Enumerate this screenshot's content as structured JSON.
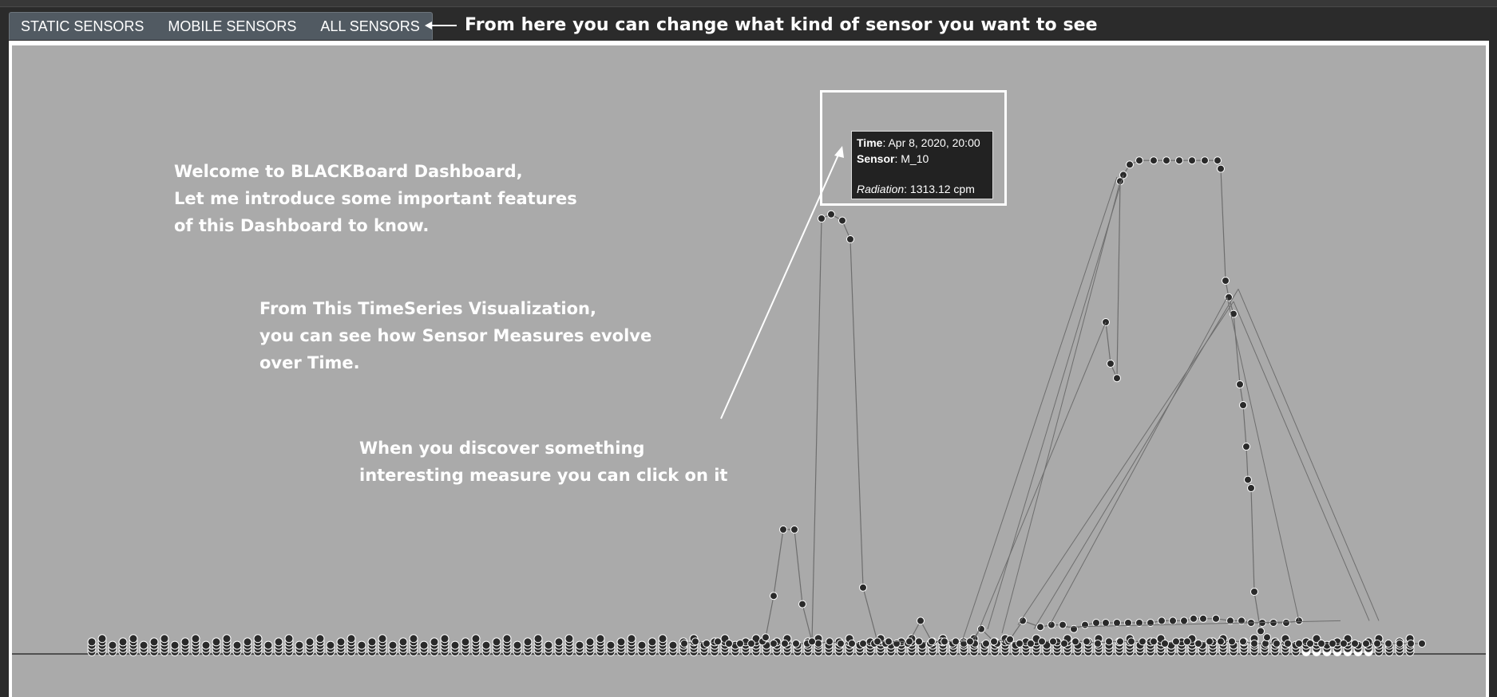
{
  "tabs": [
    {
      "label": "STATIC SENSORS"
    },
    {
      "label": "MOBILE SENSORS"
    },
    {
      "label": "ALL SENSORS"
    }
  ],
  "annotations": {
    "tabs_note": "From here you can change what kind of sensor you want to see",
    "welcome": "Welcome to BLACKBoard Dashboard,\nLet me introduce some important features\nof this Dashboard to know.",
    "timeseries_note": "From This TimeSeries Visualization,\nyou can see how Sensor Measures evolve\nover Time.",
    "click_note": "When you discover something\ninteresting measure you can click on it"
  },
  "tooltip": {
    "time_label": "Time",
    "time_value": ": Apr 8, 2020, 20:00",
    "sensor_label": "Sensor",
    "sensor_value": ": M_10",
    "measure_label": "Radiation",
    "measure_value": ": 1313.12 cpm"
  },
  "colors": {
    "page_background": "#2b2b2b",
    "plot_background": "#aaaaaa",
    "tab_bar": "#515a62",
    "point_fill": "#2a2a2a",
    "point_stroke": "#ffffff",
    "line": "#6e6e6e"
  },
  "chart_data": {
    "type": "scatter",
    "description_free": true,
    "series": [
      {
        "values": [
          [
            842,
            5
          ],
          [
            856,
            6
          ],
          [
            870,
            5
          ],
          [
            884,
            6
          ],
          [
            898,
            5
          ],
          [
            912,
            5
          ],
          [
            926,
            5
          ],
          [
            940,
            6
          ],
          [
            954,
            5
          ],
          [
            968,
            5
          ],
          [
            982,
            5
          ],
          [
            996,
            5
          ],
          [
            1010,
            5
          ],
          [
            1024,
            6
          ],
          [
            1038,
            5
          ],
          [
            1052,
            5
          ],
          [
            1066,
            5
          ],
          [
            1080,
            5
          ],
          [
            1094,
            5
          ],
          [
            1108,
            5
          ],
          [
            1122,
            5
          ],
          [
            1136,
            6
          ],
          [
            1150,
            5
          ],
          [
            1164,
            6
          ],
          [
            1178,
            5
          ],
          [
            1192,
            5
          ],
          [
            1206,
            5
          ],
          [
            1220,
            5
          ],
          [
            1234,
            5
          ],
          [
            1248,
            6
          ],
          [
            1262,
            5
          ],
          [
            1276,
            5
          ],
          [
            1290,
            6
          ],
          [
            1304,
            6
          ],
          [
            1318,
            5
          ],
          [
            1332,
            6
          ],
          [
            1346,
            6
          ],
          [
            1360,
            5
          ],
          [
            1374,
            6
          ],
          [
            1388,
            6
          ],
          [
            1402,
            6
          ],
          [
            1416,
            6
          ],
          [
            1430,
            6
          ],
          [
            1444,
            5
          ],
          [
            1458,
            6
          ],
          [
            1472,
            6
          ],
          [
            1486,
            5
          ],
          [
            1500,
            6
          ],
          [
            1514,
            6
          ],
          [
            1528,
            6
          ],
          [
            1542,
            6
          ],
          [
            1556,
            5
          ],
          [
            1570,
            5
          ],
          [
            1584,
            5
          ],
          [
            1598,
            5
          ],
          [
            1612,
            5
          ],
          [
            1626,
            5
          ],
          [
            1640,
            5
          ],
          [
            1654,
            5
          ],
          [
            1668,
            5
          ],
          [
            1682,
            5
          ],
          [
            1696,
            5
          ],
          [
            1710,
            5
          ],
          [
            1724,
            5
          ],
          [
            1738,
            5
          ],
          [
            1752,
            5
          ],
          [
            1766,
            5
          ]
        ]
      },
      {
        "values": [
          [
            944,
            8
          ],
          [
            954,
            28
          ],
          [
            966,
            60
          ],
          [
            980,
            60
          ],
          [
            990,
            24
          ],
          [
            1002,
            6
          ],
          [
            1014,
            210
          ],
          [
            1026,
            212
          ],
          [
            1040,
            209
          ],
          [
            1050,
            200
          ],
          [
            1066,
            32
          ],
          [
            1084,
            6
          ],
          [
            1098,
            6
          ],
          [
            1124,
            6
          ],
          [
            1138,
            16
          ],
          [
            1152,
            6
          ],
          [
            1168,
            6
          ],
          [
            1182,
            6
          ],
          [
            1200,
            6
          ],
          [
            1214,
            12
          ],
          [
            1230,
            6
          ],
          [
            1250,
            7
          ],
          [
            1266,
            16
          ],
          [
            1288,
            13
          ],
          [
            1302,
            14
          ],
          [
            1316,
            14
          ],
          [
            1330,
            12
          ],
          [
            1344,
            14
          ],
          [
            1358,
            15
          ],
          [
            1370,
            15
          ],
          [
            1384,
            15
          ],
          [
            1398,
            15
          ],
          [
            1412,
            15
          ],
          [
            1426,
            15
          ],
          [
            1440,
            16
          ],
          [
            1454,
            16
          ],
          [
            1468,
            16
          ],
          [
            1480,
            17
          ],
          [
            1492,
            17
          ],
          [
            1508,
            17
          ],
          [
            1526,
            16
          ],
          [
            1540,
            16
          ],
          [
            1552,
            15
          ],
          [
            1566,
            15
          ],
          [
            1580,
            15
          ],
          [
            1596,
            15
          ],
          [
            1612,
            16
          ]
        ]
      },
      {
        "values": [
          [
            1370,
            160
          ],
          [
            1376,
            140
          ],
          [
            1384,
            133
          ],
          [
            1388,
            228
          ],
          [
            1392,
            231
          ],
          [
            1400,
            236
          ],
          [
            1412,
            238
          ],
          [
            1430,
            238
          ],
          [
            1446,
            238
          ],
          [
            1462,
            238
          ],
          [
            1478,
            238
          ],
          [
            1494,
            238
          ],
          [
            1510,
            238
          ],
          [
            1514,
            234
          ],
          [
            1520,
            180
          ],
          [
            1524,
            172
          ],
          [
            1530,
            164
          ],
          [
            1538,
            130
          ],
          [
            1542,
            120
          ],
          [
            1546,
            100
          ],
          [
            1548,
            84
          ],
          [
            1552,
            80
          ],
          [
            1556,
            30
          ],
          [
            1564,
            11
          ],
          [
            1572,
            8
          ]
        ]
      }
    ]
  }
}
